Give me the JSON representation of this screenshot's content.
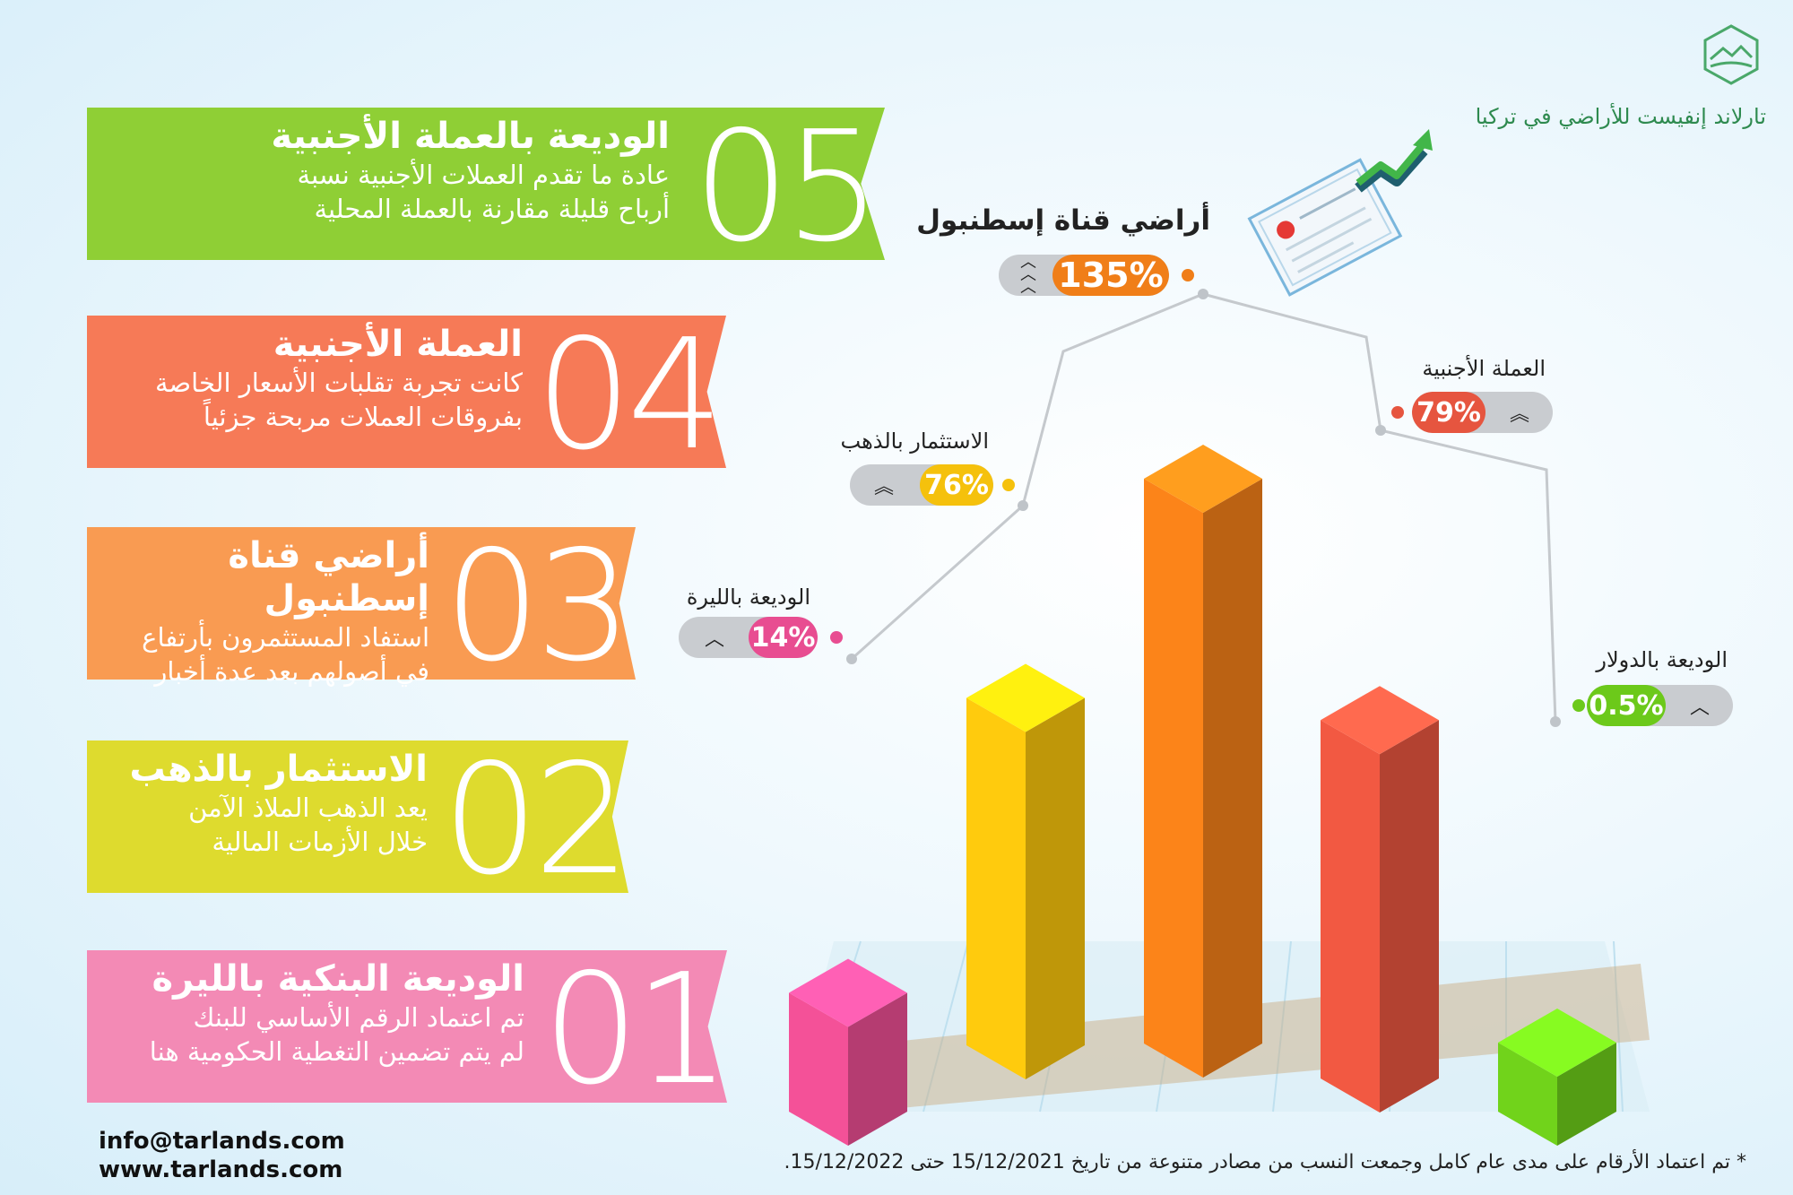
{
  "brand": {
    "name": "تارلاند إنفيست للأراضي في تركيا"
  },
  "steps": [
    {
      "num": "05",
      "title": "الوديعة بالعملة الأجنبية",
      "lines": [
        "عادة ما تقدم العملات الأجنبية نسبة",
        "أرباح قليلة مقارنة بالعملة المحلية"
      ],
      "color": "#8fcf35"
    },
    {
      "num": "04",
      "title": "العملة الأجنبية",
      "lines": [
        "كانت تجربة تقلبات الأسعار الخاصة",
        "بفروقات العملات مربحة جزئياً"
      ],
      "color": "#f67a57"
    },
    {
      "num": "03",
      "title": "أراضي قناة إسطنبول",
      "lines": [
        "استفاد المستثمرون بأرتفاع",
        "في أصولهم بعد عدة أخبار"
      ],
      "color": "#f99b52"
    },
    {
      "num": "02",
      "title": "الاستثمار بالذهب",
      "lines": [
        "يعد الذهب الملاذ الآمن",
        "خلال الأزمات المالية"
      ],
      "color": "#dedb2e"
    },
    {
      "num": "01",
      "title": "الوديعة البنكية بالليرة",
      "lines": [
        "تم اعتماد الرقم الأساسي للبنك",
        "لم يتم تضمين التغطية الحكومية هنا"
      ],
      "color": "#f38ab5"
    }
  ],
  "chart_data": {
    "type": "bar",
    "categories": [
      "الوديعة بالليرة",
      "الاستثمار بالذهب",
      "أراضي قناة إسطنبول",
      "العملة الأجنبية",
      "الوديعة بالدولار"
    ],
    "values": [
      14,
      76,
      135,
      79,
      0.5
    ],
    "value_labels": [
      "14%",
      "76%",
      "135%",
      "79%",
      "0.5%"
    ],
    "colors": [
      "#e84d91",
      "#f5c10c",
      "#f07e18",
      "#e6553f",
      "#6cc91a"
    ],
    "legend": "none",
    "grid": false
  },
  "contact": {
    "email": "info@tarlands.com",
    "web": "www.tarlands.com"
  },
  "footnote": "* تم اعتماد الأرقام على مدى عام كامل وجمعت النسب من مصادر متنوعة من تاريخ 15/12/2021 حتى 15/12/2022."
}
